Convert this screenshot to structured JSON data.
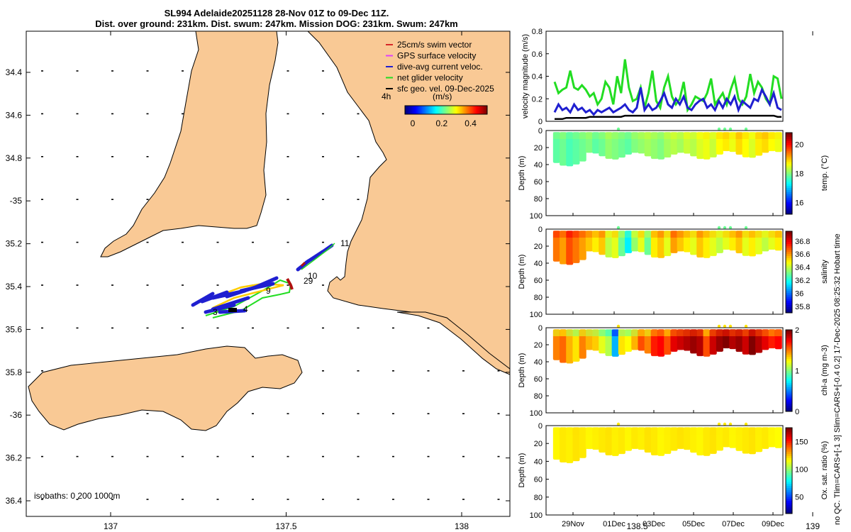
{
  "title_line1": "SL994 Adelaide20251128 28-Nov 01Z to 09-Dec 11Z.",
  "title_line2": "Dist. over ground: 231km. Dist. swum: 247km. Mission DOG: 231km. Swum: 247km",
  "map": {
    "legend": [
      {
        "label": "25cm/s swim vector",
        "color": "#d62728"
      },
      {
        "label": "GPS surface velocity",
        "color": "#e040fb"
      },
      {
        "label": "dive-avg current veloc.",
        "color": "#1f1fd0"
      },
      {
        "label": "net glider velocity",
        "color": "#22dd22"
      },
      {
        "label": "sfc geo. vel. 09-Dec-2025",
        "color": "#000000"
      }
    ],
    "colorbar_prefix": "4h",
    "colorbar_unit": "(m/s)",
    "colorbar_ticks": [
      "0",
      "0.2",
      "0.4"
    ],
    "lat_ticks": [
      "34.4",
      "34.6",
      "34.8",
      "-35",
      "35.2",
      "35.4",
      "35.6",
      "35.8",
      "-36",
      "36.2",
      "36.4"
    ],
    "lon_ticks": [
      "137",
      "137.5",
      "138",
      "138.5",
      "139"
    ],
    "track_labels": [
      "11",
      "10",
      "29",
      "9",
      "3",
      "4"
    ],
    "isobaths_label": "isobaths: 0   200  1000m",
    "land_color": "#f9c995"
  },
  "side_label": "no QC. Tlim=CARS+[-1 3] Slim=CARS+[-0.4 0.2] 17-Dec-2025 08:25:32 Hobart time",
  "chart_data": [
    {
      "type": "line",
      "title": "",
      "ylabel": "velocity magnitude (m/s)",
      "ylim": [
        0,
        0.8
      ],
      "yticks": [
        "0",
        "0.2",
        "0.4",
        "0.6",
        "0.8"
      ],
      "series": [
        {
          "name": "net glider velocity",
          "color": "#22dd22",
          "values": [
            0.35,
            0.25,
            0.28,
            0.3,
            0.45,
            0.3,
            0.28,
            0.32,
            0.28,
            0.22,
            0.25,
            0.15,
            0.2,
            0.35,
            0.3,
            0.15,
            0.4,
            0.25,
            0.55,
            0.3,
            0.18,
            0.2,
            0.3,
            0.12,
            0.25,
            0.45,
            0.18,
            0.12,
            0.3,
            0.4,
            0.22,
            0.15,
            0.2,
            0.35,
            0.1,
            0.15,
            0.22,
            0.2,
            0.18,
            0.25,
            0.38,
            0.15,
            0.2,
            0.25,
            0.15,
            0.28,
            0.38,
            0.2,
            0.15,
            0.22,
            0.42,
            0.25,
            0.35,
            0.3,
            0.2,
            0.15,
            0.4,
            0.38,
            0.2
          ]
        },
        {
          "name": "dive-avg current veloc.",
          "color": "#1f1fd0",
          "values": [
            0.08,
            0.15,
            0.1,
            0.12,
            0.08,
            0.15,
            0.1,
            0.12,
            0.08,
            0.1,
            0.06,
            0.1,
            0.08,
            0.1,
            0.12,
            0.08,
            0.1,
            0.12,
            0.15,
            0.1,
            0.08,
            0.12,
            0.3,
            0.1,
            0.15,
            0.1,
            0.12,
            0.18,
            0.25,
            0.15,
            0.12,
            0.2,
            0.15,
            0.22,
            0.12,
            0.1,
            0.15,
            0.18,
            0.2,
            0.12,
            0.15,
            0.1,
            0.18,
            0.12,
            0.2,
            0.15,
            0.22,
            0.1,
            0.18,
            0.15,
            0.12,
            0.2,
            0.18,
            0.28,
            0.22,
            0.15,
            0.25,
            0.12,
            0.1
          ]
        },
        {
          "name": "sfc geo. vel.",
          "color": "#000000",
          "values": [
            0.02,
            0.02,
            0.02,
            0.03,
            0.03,
            0.03,
            0.03,
            0.03,
            0.03,
            0.04,
            0.04,
            0.04,
            0.04,
            0.04,
            0.04,
            0.04,
            0.04,
            0.04,
            0.05,
            0.05,
            0.05,
            0.05,
            0.05,
            0.05,
            0.05,
            0.05,
            0.05,
            0.05,
            0.05,
            0.05,
            0.05,
            0.05,
            0.05,
            0.05,
            0.05,
            0.05,
            0.05,
            0.05,
            0.05,
            0.05,
            0.05,
            0.05,
            0.05,
            0.05,
            0.05,
            0.05,
            0.05,
            0.05,
            0.05,
            0.05,
            0.05,
            0.05,
            0.05,
            0.05,
            0.05,
            0.05,
            0.05,
            0.04,
            0.04
          ]
        }
      ]
    },
    {
      "type": "heatmap",
      "ylabel": "Depth (m)",
      "colorbar_label": "temp. (°C)",
      "ylim": [
        0,
        100
      ],
      "yticks": [
        "0",
        "20",
        "40",
        "60",
        "80",
        "100"
      ],
      "colorbar_ticks": [
        "16",
        "18",
        "20"
      ],
      "colorbar_range": [
        15.2,
        20.8
      ],
      "values": [
        17.8,
        17.9,
        17.7,
        17.8,
        17.9,
        18.0,
        17.8,
        17.9,
        18.1,
        18.0,
        17.9,
        17.8,
        18.0,
        18.1,
        18.2,
        18.1,
        18.0,
        18.2,
        18.3,
        18.2,
        18.4,
        18.3,
        18.5,
        18.6,
        18.4,
        18.7,
        18.8,
        18.6,
        18.9,
        18.7,
        18.5,
        18.8,
        18.9,
        18.7,
        18.6
      ]
    },
    {
      "type": "heatmap",
      "ylabel": "Depth (m)",
      "colorbar_label": "salinity",
      "ylim": [
        0,
        100
      ],
      "yticks": [
        "0",
        "20",
        "40",
        "60",
        "80",
        "100"
      ],
      "colorbar_ticks": [
        "35.8",
        "36",
        "36.2",
        "36.4",
        "36.6",
        "36.8"
      ],
      "colorbar_range": [
        35.7,
        36.95
      ],
      "values": [
        36.65,
        36.6,
        36.7,
        36.65,
        36.6,
        36.55,
        36.5,
        36.55,
        36.4,
        36.45,
        36.3,
        36.15,
        36.35,
        36.45,
        36.3,
        36.5,
        36.55,
        36.45,
        36.6,
        36.55,
        36.5,
        36.45,
        36.55,
        36.5,
        36.45,
        36.4,
        36.45,
        36.5,
        36.55,
        36.45,
        36.5,
        36.45,
        36.4,
        36.45,
        36.5
      ]
    },
    {
      "type": "heatmap",
      "ylabel": "Depth (m)",
      "colorbar_label": "chl-a (mg m-3)",
      "ylim": [
        0,
        100
      ],
      "yticks": [
        "0",
        "20",
        "40",
        "60",
        "80",
        "100"
      ],
      "colorbar_ticks": [
        "0",
        "1",
        "2"
      ],
      "colorbar_range": [
        0,
        2
      ],
      "values": [
        1.5,
        1.55,
        1.4,
        1.3,
        1.5,
        1.4,
        1.35,
        1.2,
        1.1,
        0.6,
        1.3,
        1.25,
        1.4,
        1.6,
        1.5,
        1.7,
        1.75,
        1.6,
        1.8,
        1.85,
        1.9,
        1.95,
        1.9,
        1.6,
        1.85,
        1.95,
        2.0,
        1.9,
        1.95,
        1.85,
        2.0,
        1.9,
        1.8,
        1.7,
        1.75
      ]
    },
    {
      "type": "heatmap",
      "ylabel": "Depth (m)",
      "colorbar_label": "Ox. sat. ratio (%)",
      "ylim": [
        0,
        100
      ],
      "yticks": [
        "0",
        "20",
        "40",
        "60",
        "80",
        "100"
      ],
      "colorbar_ticks": [
        "50",
        "100",
        "150"
      ],
      "colorbar_range": [
        20,
        175
      ],
      "values": [
        118,
        120,
        119,
        121,
        120,
        118,
        119,
        120,
        121,
        119,
        120,
        118,
        120,
        119,
        121,
        120,
        118,
        119,
        120,
        121,
        120,
        119,
        118,
        120,
        121,
        119,
        120,
        118,
        119,
        120,
        121,
        119,
        120,
        118,
        117
      ]
    }
  ],
  "time_axis": {
    "ticks": [
      "29Nov",
      "01Dec",
      "03Dec",
      "05Dec",
      "07Dec",
      "09Dec"
    ]
  }
}
